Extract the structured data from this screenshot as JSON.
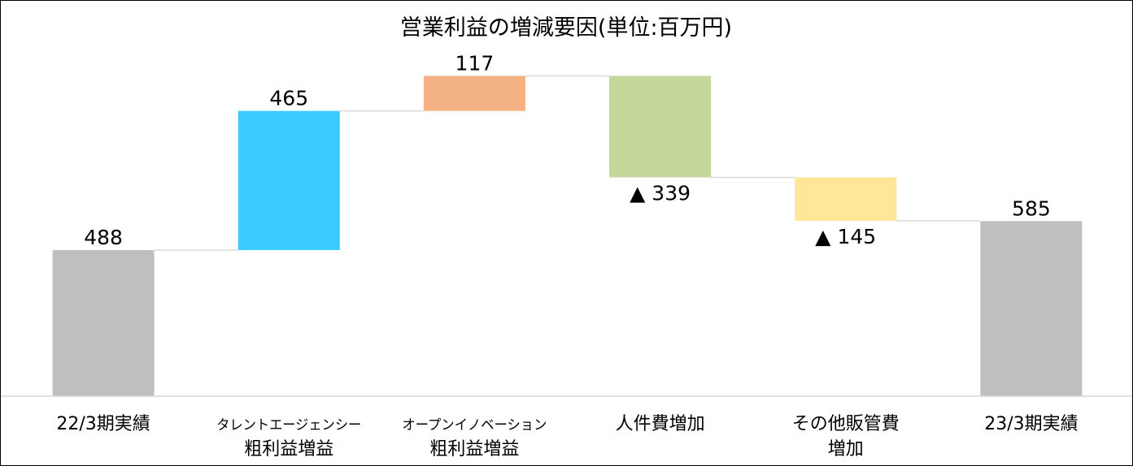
{
  "chart_data": {
    "type": "waterfall",
    "title": "営業利益の増減要因(単位:百万円)",
    "categories": [
      [
        "22/3期実績"
      ],
      [
        "タレントエージェンシー",
        "粗利益増益"
      ],
      [
        "オープンイノベーション",
        "粗利益増益"
      ],
      [
        "人件費増加"
      ],
      [
        "その他販管費",
        "増加"
      ],
      [
        "23/3期実績"
      ]
    ],
    "steps": [
      {
        "kind": "total",
        "value": 488,
        "label": "488",
        "color": "#BFBFBF"
      },
      {
        "kind": "delta",
        "value": 465,
        "label": "465",
        "color": "#3CCBFF"
      },
      {
        "kind": "delta",
        "value": 117,
        "label": "117",
        "color": "#F3B184"
      },
      {
        "kind": "delta",
        "value": -339,
        "label": "▲ 339",
        "color": "#C5D89C"
      },
      {
        "kind": "delta",
        "value": -145,
        "label": "▲ 145",
        "color": "#FFE699"
      },
      {
        "kind": "total",
        "value": 585,
        "label": "585",
        "color": "#BFBFBF"
      }
    ],
    "ylim": [
      0,
      1150
    ],
    "connector_color": "#D9D9D9",
    "axis_color": "#D9D9D9",
    "grid": false,
    "legend": "none"
  }
}
